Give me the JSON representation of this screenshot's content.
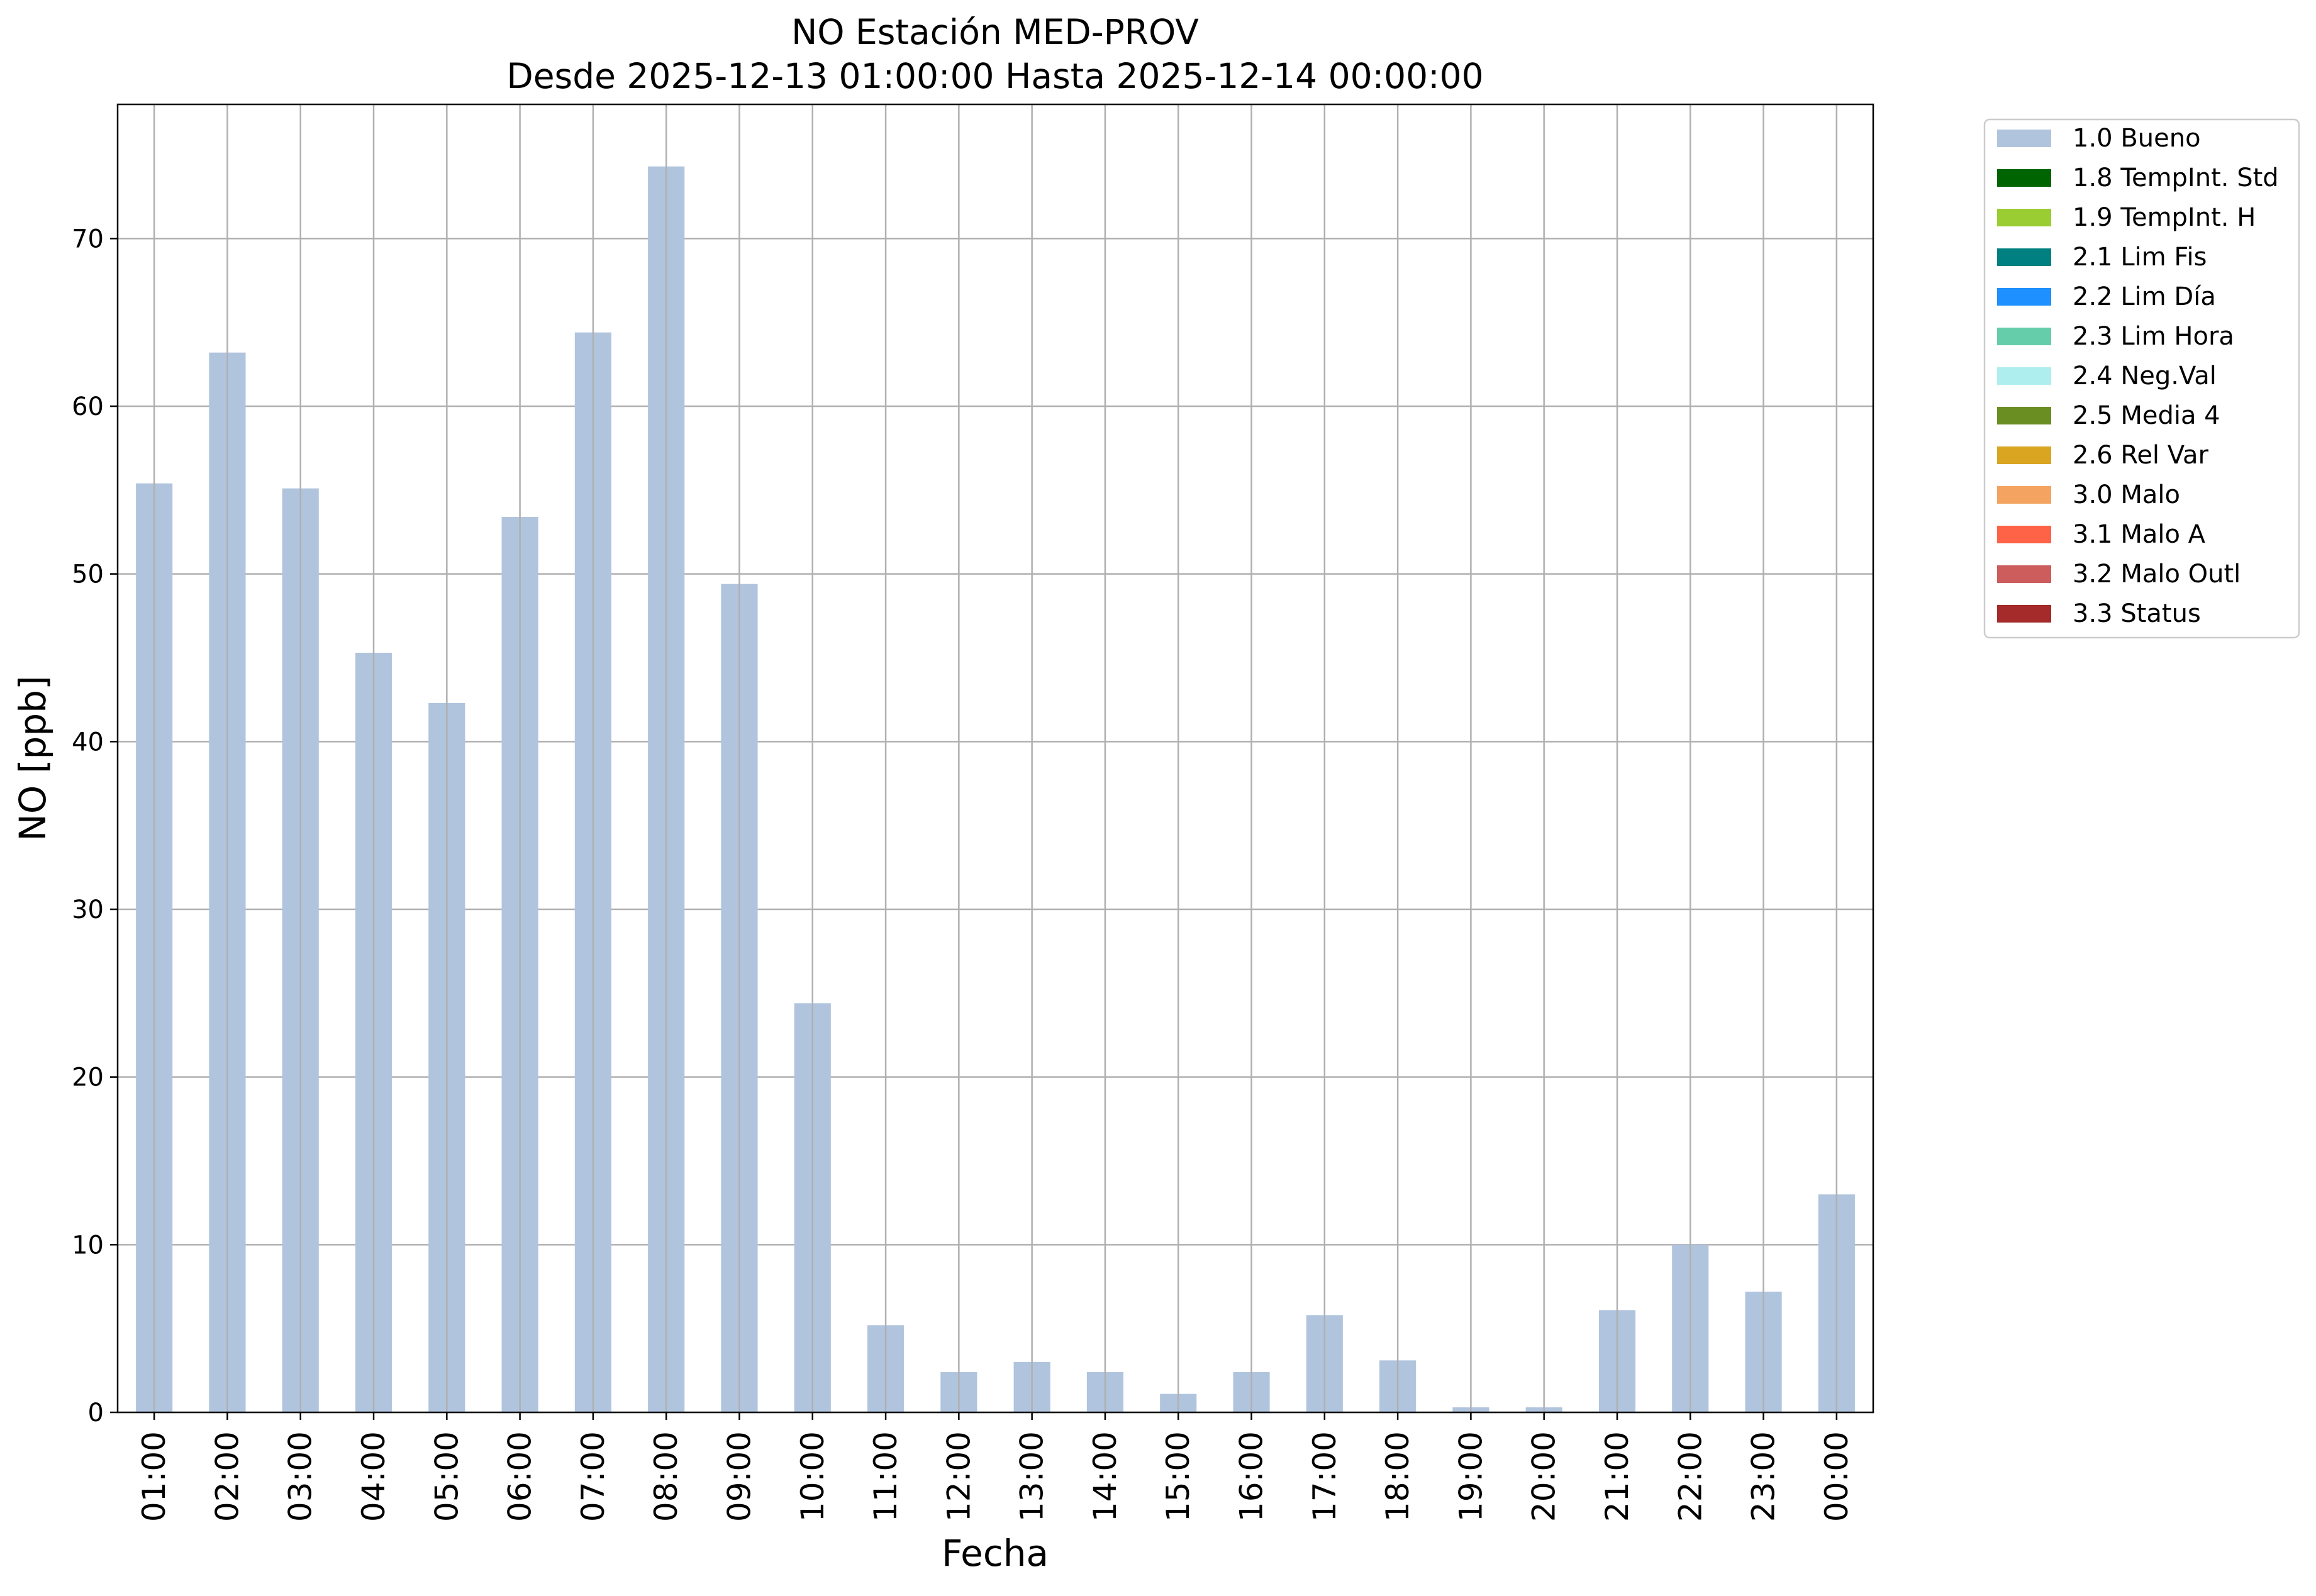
{
  "chart_data": {
    "type": "bar",
    "title": "NO Estación MED-PROV",
    "subtitle": "Desde 2025-12-13 01:00:00 Hasta 2025-12-14 00:00:00",
    "xlabel": "Fecha",
    "ylabel": "NO [ppb]",
    "ylim": [
      0,
      78
    ],
    "yticks": [
      0,
      10,
      20,
      30,
      40,
      50,
      60,
      70
    ],
    "grid": true,
    "legend_position": "outside-top-right",
    "categories": [
      "01:00",
      "02:00",
      "03:00",
      "04:00",
      "05:00",
      "06:00",
      "07:00",
      "08:00",
      "09:00",
      "10:00",
      "11:00",
      "12:00",
      "13:00",
      "14:00",
      "15:00",
      "16:00",
      "17:00",
      "18:00",
      "19:00",
      "20:00",
      "21:00",
      "22:00",
      "23:00",
      "00:00"
    ],
    "series": [
      {
        "name": "1.0 Bueno",
        "color": "#b0c4de",
        "values": [
          55.4,
          63.2,
          55.1,
          45.3,
          42.3,
          53.4,
          64.4,
          74.3,
          49.4,
          24.4,
          5.2,
          2.4,
          3.0,
          2.4,
          1.1,
          2.4,
          5.8,
          3.1,
          0.3,
          0.3,
          6.1,
          10.0,
          7.2,
          13.0
        ]
      }
    ],
    "legend": [
      {
        "label": "1.0 Bueno",
        "color": "#b0c4de"
      },
      {
        "label": "1.8 TempInt. Std",
        "color": "#006400"
      },
      {
        "label": "1.9 TempInt. H",
        "color": "#9acd32"
      },
      {
        "label": "2.1 Lim Fis",
        "color": "#008080"
      },
      {
        "label": "2.2 Lim Día",
        "color": "#1e90ff"
      },
      {
        "label": "2.3 Lim Hora",
        "color": "#66cdaa"
      },
      {
        "label": "2.4 Neg.Val",
        "color": "#afeeee"
      },
      {
        "label": "2.5 Media 4",
        "color": "#6b8e23"
      },
      {
        "label": "2.6 Rel Var",
        "color": "#daa520"
      },
      {
        "label": "3.0 Malo",
        "color": "#f4a460"
      },
      {
        "label": "3.1 Malo A",
        "color": "#ff6347"
      },
      {
        "label": "3.2 Malo Outl",
        "color": "#cd5c5c"
      },
      {
        "label": "3.3 Status",
        "color": "#a52a2a"
      }
    ]
  }
}
